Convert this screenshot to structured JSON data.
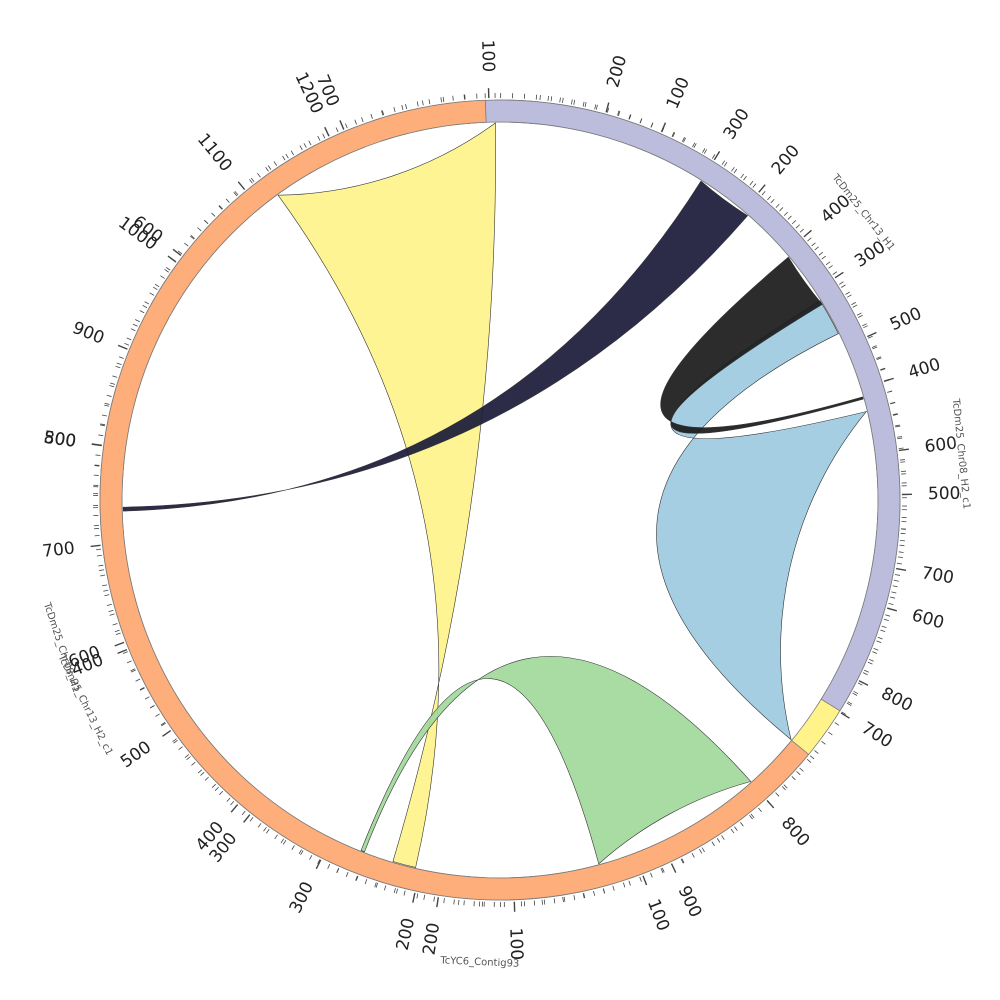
{
  "chart_data": {
    "type": "chord",
    "segments": [
      {
        "id": "contig93",
        "name": "TcYC6_Contig93",
        "length": 40,
        "color": "#9ecae1",
        "tick_major": [],
        "tick_minor_step": 10
      },
      {
        "id": "chr08_h2",
        "name": "TcDm25_Chr08_H2_c1",
        "length": 940,
        "color": "#fff38a",
        "tick_major": [
          100,
          200,
          300,
          400,
          500,
          600,
          700,
          800,
          900
        ],
        "tick_minor_step": 10
      },
      {
        "id": "chr08_h1",
        "name": "TcDm25_Chr08_H1",
        "length": 1230,
        "color": "#a1d99b",
        "tick_major": [
          100,
          200,
          300,
          400,
          500,
          600,
          700,
          800,
          900,
          1000,
          1100,
          1200
        ],
        "tick_minor_step": 10
      },
      {
        "id": "chr13_h1",
        "name": "TcDm25_Chr13_H1",
        "length": 830,
        "color": "#bcbddc",
        "tick_major": [
          100,
          200,
          300,
          400,
          500,
          600,
          700,
          800
        ],
        "tick_minor_step": 10
      },
      {
        "id": "chr13_h2",
        "name": "TcDm25_Chr13_H2_c1",
        "length": 770,
        "color": "#fdae7b",
        "tick_major": [
          100,
          200,
          300,
          400,
          500,
          600,
          700
        ],
        "tick_minor_step": 10
      }
    ],
    "links": [
      {
        "from": "contig93",
        "from_range": [
          0,
          4
        ],
        "to": "chr08_h1",
        "to_range": [
          205,
          230
        ],
        "color": "#fff38a"
      },
      {
        "from": "contig93",
        "from_range": [
          26,
          32
        ],
        "to": "chr08_h2",
        "to_range": [
          310,
          345
        ],
        "color": "#9ecae1"
      },
      {
        "from": "contig93",
        "from_range": [
          22,
          25
        ],
        "to": "chr08_h1",
        "to_range": [
          262,
          266
        ],
        "color": "#a1d99b"
      },
      {
        "from": "contig93",
        "from_range": [
          34,
          35
        ],
        "to": "chr13_h1",
        "to_range": [
          548,
          550
        ],
        "color": "#1a1a1a"
      },
      {
        "from": "contig93",
        "from_range": [
          36,
          37
        ],
        "to": "chr13_h2",
        "to_range": [
          468,
          470
        ],
        "color": "#1a1a3a"
      }
    ]
  }
}
